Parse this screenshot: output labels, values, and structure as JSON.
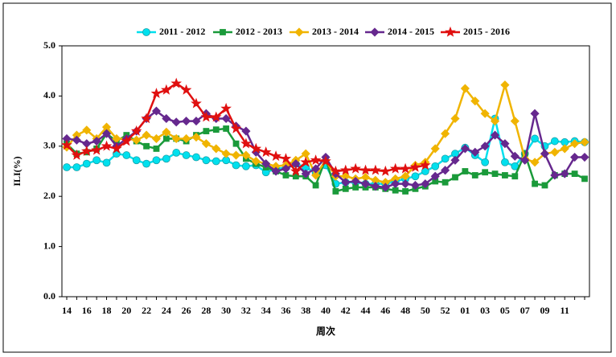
{
  "chart_data": {
    "type": "line",
    "x_label": "周次",
    "y_label": "ILI(%)",
    "categories": [
      "14",
      null,
      "16",
      null,
      "18",
      null,
      "20",
      null,
      "22",
      null,
      "24",
      null,
      "26",
      null,
      "28",
      null,
      "30",
      null,
      "32",
      null,
      "34",
      null,
      "36",
      null,
      "38",
      null,
      "40",
      null,
      "42",
      null,
      "44",
      null,
      "46",
      null,
      "48",
      null,
      "50",
      null,
      "52",
      null,
      "01",
      null,
      "03",
      null,
      "05",
      null,
      "07",
      null,
      "09",
      null,
      "11",
      null,
      null
    ],
    "ylim": [
      0,
      5
    ],
    "yticks": [
      {
        "value": 0,
        "label": "0.0"
      },
      {
        "value": 1,
        "label": "1.0"
      },
      {
        "value": 2,
        "label": "2.0"
      },
      {
        "value": 3,
        "label": "3.0"
      },
      {
        "value": 4,
        "label": "4.0"
      },
      {
        "value": 5,
        "label": "5.0"
      }
    ],
    "legend": "top",
    "series": [
      {
        "name": "2011 - 2012",
        "color": "#00e0ee",
        "marker": "circle",
        "values": [
          2.58,
          2.58,
          2.65,
          2.72,
          2.67,
          2.85,
          2.82,
          2.72,
          2.65,
          2.72,
          2.75,
          2.87,
          2.82,
          2.78,
          2.72,
          2.7,
          2.72,
          2.62,
          2.6,
          2.62,
          2.48,
          2.55,
          2.57,
          2.65,
          2.58,
          2.47,
          2.62,
          2.25,
          2.28,
          2.28,
          2.25,
          2.25,
          2.25,
          2.3,
          2.35,
          2.4,
          2.5,
          2.6,
          2.75,
          2.85,
          2.97,
          2.82,
          2.68,
          3.55,
          2.68,
          2.6,
          2.85,
          3.15,
          3.0,
          3.1,
          3.08,
          3.1,
          3.08
        ]
      },
      {
        "name": "2012 - 2013",
        "color": "#1a9a3a",
        "marker": "square",
        "values": [
          3.05,
          2.85,
          2.88,
          2.95,
          3.25,
          3.1,
          3.22,
          3.1,
          3.0,
          2.95,
          3.15,
          3.15,
          3.1,
          3.22,
          3.3,
          3.33,
          3.35,
          3.05,
          2.75,
          2.65,
          2.58,
          2.5,
          2.42,
          2.4,
          2.4,
          2.22,
          2.75,
          2.1,
          2.15,
          2.18,
          2.18,
          2.18,
          2.15,
          2.12,
          2.1,
          2.15,
          2.2,
          2.3,
          2.28,
          2.38,
          2.5,
          2.42,
          2.48,
          2.45,
          2.42,
          2.4,
          2.85,
          2.25,
          2.22,
          2.42,
          2.45,
          2.45,
          2.35
        ]
      },
      {
        "name": "2013 - 2014",
        "color": "#f0b400",
        "marker": "diamond",
        "values": [
          2.98,
          3.22,
          3.32,
          3.15,
          3.38,
          3.15,
          3.15,
          3.12,
          3.22,
          3.15,
          3.28,
          3.15,
          3.15,
          3.18,
          3.05,
          2.95,
          2.85,
          2.82,
          2.82,
          2.7,
          2.65,
          2.6,
          2.62,
          2.72,
          2.85,
          2.42,
          2.72,
          2.4,
          2.4,
          2.35,
          2.38,
          2.32,
          2.28,
          2.35,
          2.4,
          2.62,
          2.68,
          2.95,
          3.25,
          3.55,
          4.15,
          3.9,
          3.65,
          3.5,
          4.22,
          3.5,
          2.75,
          2.68,
          2.85,
          2.88,
          2.95,
          3.05,
          3.08
        ]
      },
      {
        "name": "2014 - 2015",
        "color": "#66288e",
        "marker": "diamond",
        "values": [
          3.15,
          3.12,
          3.05,
          3.1,
          3.25,
          3.0,
          3.15,
          3.3,
          3.55,
          3.7,
          3.55,
          3.48,
          3.5,
          3.5,
          3.65,
          3.55,
          3.55,
          3.4,
          3.3,
          2.88,
          2.65,
          2.5,
          2.55,
          2.65,
          2.45,
          2.55,
          2.78,
          2.45,
          2.28,
          2.3,
          2.25,
          2.2,
          2.18,
          2.25,
          2.25,
          2.22,
          2.25,
          2.4,
          2.52,
          2.72,
          2.95,
          2.88,
          3.0,
          3.22,
          3.05,
          2.8,
          2.72,
          3.65,
          2.85,
          2.42,
          2.45,
          2.78,
          2.78
        ]
      },
      {
        "name": "2015 - 2016",
        "color": "#e01010",
        "marker": "star",
        "values": [
          3.02,
          2.82,
          2.9,
          2.92,
          3.0,
          2.95,
          3.1,
          3.3,
          3.55,
          4.05,
          4.12,
          4.25,
          4.12,
          3.85,
          3.58,
          3.58,
          3.75,
          3.35,
          3.05,
          2.95,
          2.88,
          2.8,
          2.75,
          2.5,
          2.68,
          2.72,
          2.7,
          2.5,
          2.52,
          2.55,
          2.52,
          2.52,
          2.5,
          2.55,
          2.55,
          2.58,
          2.62,
          null,
          null,
          null,
          null,
          null,
          null,
          null,
          null,
          null,
          null,
          null,
          null,
          null,
          null,
          null,
          null
        ]
      }
    ]
  }
}
